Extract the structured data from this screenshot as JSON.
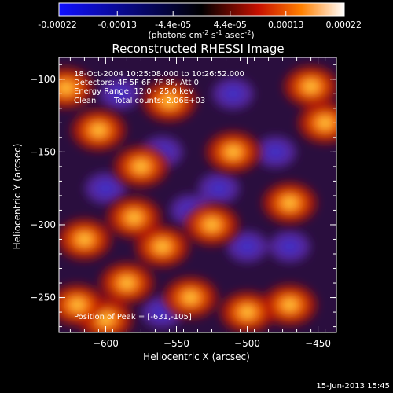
{
  "colorbar": {
    "tick_labels": [
      "-0.00022",
      "-0.00013",
      "-4.4e-05",
      "4.4e-05",
      "0.00013",
      "0.00022"
    ],
    "tick_values": [
      -0.00022,
      -0.00013,
      -4.4e-05,
      4.4e-05,
      0.00013,
      0.00022
    ],
    "range": [
      -0.00022,
      0.00022
    ],
    "unit_parts": {
      "a": "(photons cm",
      "b": "-2",
      "c": " s",
      "d": "-1",
      "e": " asec",
      "f": "-2",
      "g": ")"
    },
    "colors": [
      "#1010ff",
      "#000000",
      "#c81000",
      "#ff8000",
      "#ffffff"
    ]
  },
  "chart_data": {
    "type": "heatmap",
    "title": "Reconstructed RHESSI Image",
    "xlabel": "Heliocentric X (arcsec)",
    "ylabel": "Heliocentric Y (arcsec)",
    "xlim": [
      -633,
      -437
    ],
    "ylim": [
      -274,
      -85
    ],
    "xticks": [
      -600,
      -550,
      -500,
      -450
    ],
    "xtick_labels": [
      "−600",
      "−550",
      "−500",
      "−450"
    ],
    "yticks": [
      -100,
      -150,
      -200,
      -250
    ],
    "ytick_labels": [
      "−100",
      "−150",
      "−200",
      "−250"
    ],
    "peak": [
      -631,
      -105
    ],
    "hot_spots": [
      [
        -628,
        -106
      ],
      [
        -605,
        -135
      ],
      [
        -575,
        -160
      ],
      [
        -580,
        -195
      ],
      [
        -585,
        -240
      ],
      [
        -615,
        -210
      ],
      [
        -560,
        -215
      ],
      [
        -540,
        -250
      ],
      [
        -500,
        -260
      ],
      [
        -445,
        -130
      ],
      [
        -455,
        -105
      ],
      [
        -470,
        -185
      ],
      [
        -510,
        -150
      ],
      [
        -555,
        -115
      ],
      [
        -600,
        -265
      ],
      [
        -470,
        -255
      ],
      [
        -525,
        -200
      ],
      [
        -620,
        -255
      ]
    ],
    "cool_spots": [
      [
        -560,
        -150
      ],
      [
        -520,
        -175
      ],
      [
        -500,
        -215
      ],
      [
        -540,
        -190
      ],
      [
        -470,
        -215
      ],
      [
        -590,
        -110
      ],
      [
        -510,
        -110
      ],
      [
        -480,
        -150
      ],
      [
        -600,
        -175
      ],
      [
        -560,
        -260
      ]
    ]
  },
  "annotations": {
    "time_range": "18-Oct-2004 10:25:08.000 to 10:26:52.000",
    "detectors": "Detectors: 4F 5F 6F 7F 8F, Att 0",
    "energy_range": "Energy Range: 12.0 - 25.0 keV",
    "clean": "Clean",
    "total_counts": "Total counts: 2.06E+03",
    "peak_position": "Position of Peak = [-631,-105]"
  },
  "footer": {
    "date": "15-Jun-2013 15:45"
  }
}
